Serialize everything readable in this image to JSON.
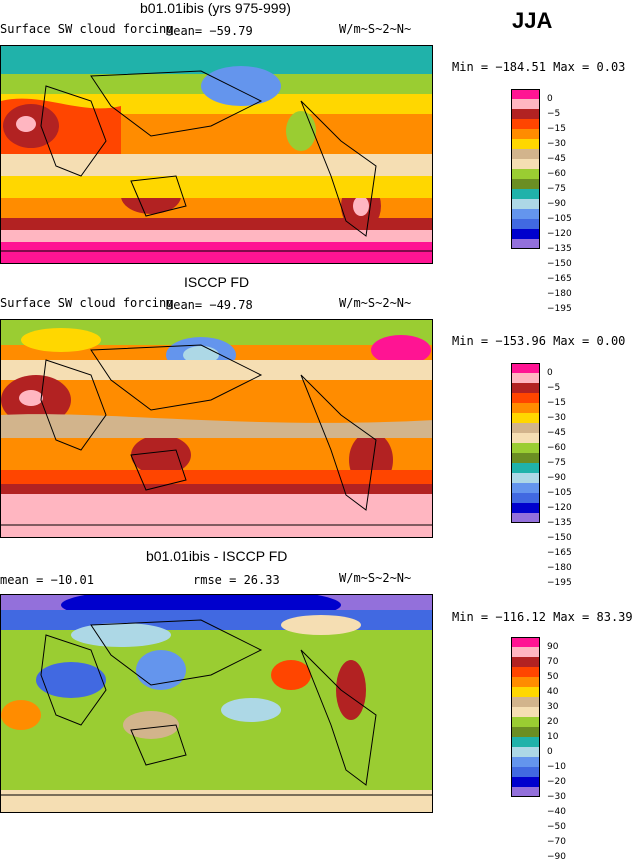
{
  "season": "JJA",
  "panels": [
    {
      "title": "b01.01ibis (yrs 975-999)",
      "left_label": "Surface SW cloud forcing",
      "center_label": "Mean= −59.79",
      "units": "W/m~S~2~N~",
      "minmax": "Min = −184.51 Max =    0.03",
      "levels": [
        "0",
        "−5",
        "−15",
        "−30",
        "−45",
        "−60",
        "−75",
        "−90",
        "−105",
        "−120",
        "−135",
        "−150",
        "−165",
        "−180",
        "−195"
      ],
      "colors": [
        "#ff1493",
        "#ffb6c1",
        "#b22222",
        "#ff4500",
        "#ff8c00",
        "#ffd700",
        "#d2b48c",
        "#f5deb3",
        "#9acd32",
        "#6b8e23",
        "#20b2aa",
        "#add8e6",
        "#6495ed",
        "#4169e1",
        "#0000cd",
        "#9370db"
      ]
    },
    {
      "title": "ISCCP FD",
      "left_label": "Surface SW cloud forcing",
      "center_label": "Mean= −49.78",
      "units": "W/m~S~2~N~",
      "minmax": "Min = −153.96 Max =    0.00",
      "levels": [
        "0",
        "−5",
        "−15",
        "−30",
        "−45",
        "−60",
        "−75",
        "−90",
        "−105",
        "−120",
        "−135",
        "−150",
        "−165",
        "−180",
        "−195"
      ],
      "colors": [
        "#ff1493",
        "#ffb6c1",
        "#b22222",
        "#ff4500",
        "#ff8c00",
        "#ffd700",
        "#d2b48c",
        "#f5deb3",
        "#9acd32",
        "#6b8e23",
        "#20b2aa",
        "#add8e6",
        "#6495ed",
        "#4169e1",
        "#0000cd",
        "#9370db"
      ]
    },
    {
      "title": "b01.01ibis - ISCCP FD",
      "left_label": "mean = −10.01",
      "center_label": "rmse =  26.33",
      "units": "W/m~S~2~N~",
      "minmax": "Min = −116.12 Max =  83.39",
      "levels": [
        "90",
        "70",
        "50",
        "40",
        "30",
        "20",
        "10",
        "0",
        "−10",
        "−20",
        "−30",
        "−40",
        "−50",
        "−70",
        "−90"
      ],
      "colors": [
        "#ff1493",
        "#ffb6c1",
        "#b22222",
        "#ff4500",
        "#ff8c00",
        "#ffd700",
        "#d2b48c",
        "#f5deb3",
        "#9acd32",
        "#6b8e23",
        "#20b2aa",
        "#add8e6",
        "#6495ed",
        "#4169e1",
        "#0000cd",
        "#9370db"
      ]
    }
  ]
}
